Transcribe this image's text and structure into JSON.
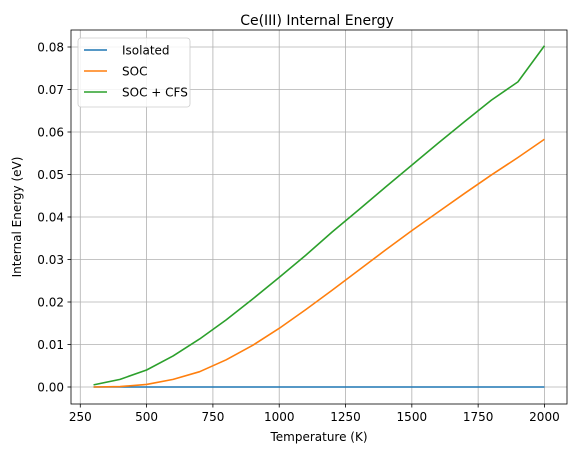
{
  "chart_data": {
    "type": "line",
    "title": "Ce(III) Internal Energy",
    "xlabel": "Temperature (K)",
    "ylabel": "Internal Energy (eV)",
    "xlim": [
      215,
      2085
    ],
    "ylim": [
      -0.004,
      0.084
    ],
    "xticks": [
      250,
      500,
      750,
      1000,
      1250,
      1500,
      1750,
      2000
    ],
    "xtick_labels": [
      "250",
      "500",
      "750",
      "1000",
      "1250",
      "1500",
      "1750",
      "2000"
    ],
    "yticks": [
      0.0,
      0.01,
      0.02,
      0.03,
      0.04,
      0.05,
      0.06,
      0.07,
      0.08
    ],
    "ytick_labels": [
      "0.00",
      "0.01",
      "0.02",
      "0.03",
      "0.04",
      "0.05",
      "0.06",
      "0.07",
      "0.08"
    ],
    "grid": true,
    "legend_position": "upper-left",
    "x": [
      300,
      400,
      500,
      600,
      700,
      800,
      900,
      1000,
      1100,
      1200,
      1300,
      1400,
      1500,
      1600,
      1700,
      1800,
      1900,
      2000
    ],
    "series": [
      {
        "name": "Isolated",
        "color": "#1f77b4",
        "values": [
          0,
          0,
          0,
          0,
          0,
          0,
          0,
          0,
          0,
          0,
          0,
          0,
          0,
          0,
          0,
          0,
          0,
          0
        ]
      },
      {
        "name": "SOC",
        "color": "#ff7f0e",
        "values": [
          0.0,
          0.0001,
          0.0006,
          0.0018,
          0.0036,
          0.0064,
          0.0098,
          0.0138,
          0.0182,
          0.0228,
          0.0275,
          0.0322,
          0.0368,
          0.0412,
          0.0456,
          0.0499,
          0.054,
          0.0583
        ]
      },
      {
        "name": "SOC + CFS",
        "color": "#2ca02c",
        "values": [
          0.0005,
          0.0018,
          0.004,
          0.0073,
          0.0113,
          0.0158,
          0.0207,
          0.0258,
          0.031,
          0.0365,
          0.0417,
          0.047,
          0.0522,
          0.0574,
          0.0625,
          0.0675,
          0.0718,
          0.0803
        ]
      }
    ]
  }
}
